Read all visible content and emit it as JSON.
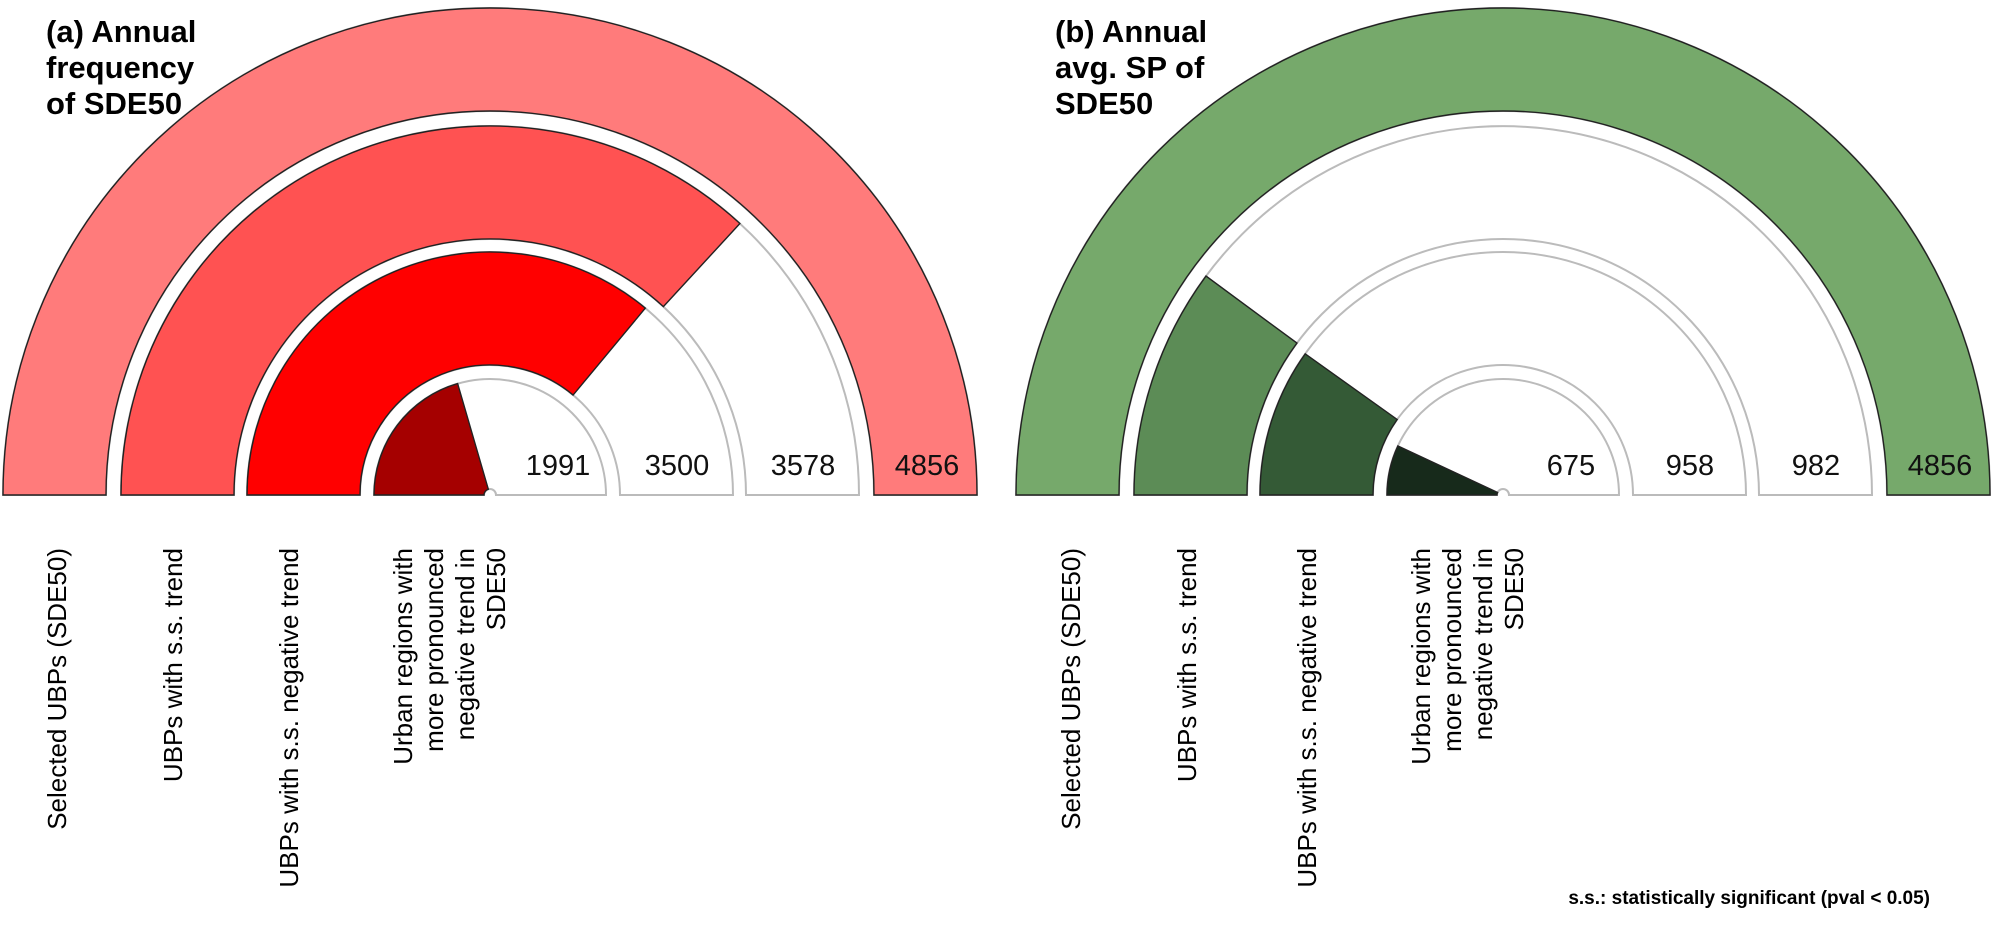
{
  "footnote": "s.s.: statistically significant (pval < 0.05)",
  "chart_data": [
    {
      "type": "radial-bar",
      "title_lines": [
        "(a) Annual",
        "frequency",
        "of SDE50"
      ],
      "max": 4856,
      "categories": [
        "Selected UBPs (SDE50)",
        "UBPs with s.s. trend",
        "UBPs with s.s. negative trend",
        "Urban regions with more pronounced negative trend in SDE50"
      ],
      "category_label_lines": [
        [
          "Selected UBPs (SDE50)"
        ],
        [
          "UBPs with s.s. trend"
        ],
        [
          "UBPs with s.s. negative trend"
        ],
        [
          "Urban regions with",
          "more pronounced",
          "negative trend in",
          "SDE50"
        ]
      ],
      "values": [
        4856,
        3578,
        3500,
        1991
      ],
      "value_labels": [
        "4856",
        "3578",
        "3500",
        "1991"
      ],
      "colors": [
        "#ff7b7b",
        "#ff5252",
        "#ff0000",
        "#a50000"
      ]
    },
    {
      "type": "radial-bar",
      "title_lines": [
        "(b) Annual",
        "avg. SP of",
        "SDE50"
      ],
      "max": 4856,
      "categories": [
        "Selected UBPs (SDE50)",
        "UBPs with s.s. trend",
        "UBPs with s.s. negative trend",
        "Urban regions with more pronounced negative trend in SDE50"
      ],
      "category_label_lines": [
        [
          "Selected UBPs (SDE50)"
        ],
        [
          "UBPs with s.s. trend"
        ],
        [
          "UBPs with s.s. negative trend"
        ],
        [
          "Urban regions with",
          "more pronounced",
          "negative trend in",
          "SDE50"
        ]
      ],
      "values": [
        4856,
        982,
        958,
        675
      ],
      "value_labels": [
        "4856",
        "982",
        "958",
        "675"
      ],
      "colors": [
        "#76a96b",
        "#5c8c56",
        "#345a36",
        "#172a1b"
      ]
    }
  ]
}
